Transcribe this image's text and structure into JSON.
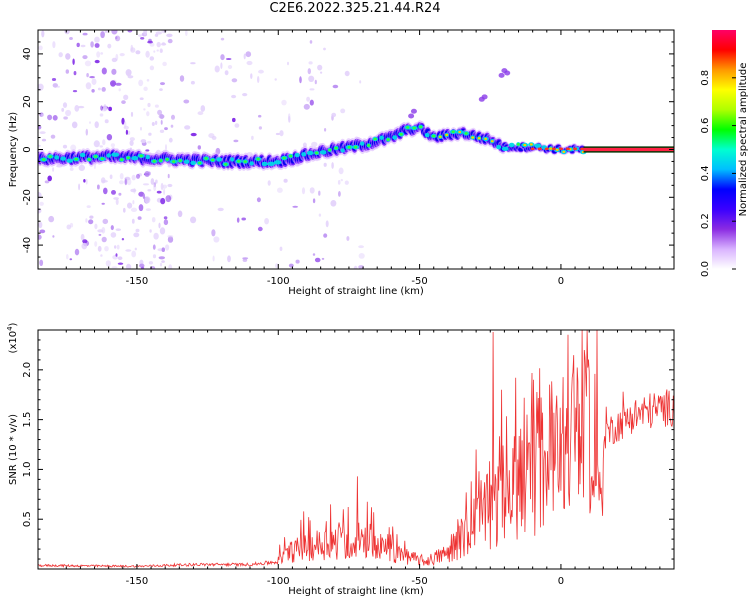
{
  "title": "C2E6.2022.325.21.44.R24",
  "colorbar": {
    "label": "Normalized spectral amplitude",
    "ticks": [
      "0.0",
      "0.2",
      "0.4",
      "0.6",
      "0.8"
    ],
    "range": [
      0,
      1
    ],
    "colors": [
      "#ffffff",
      "#d9b3ff",
      "#8a2be2",
      "#3a00ff",
      "#0000ff",
      "#00bfff",
      "#00ffd0",
      "#00ff00",
      "#b0ff00",
      "#ffff00",
      "#ff9900",
      "#ff0000",
      "#ff0066"
    ]
  },
  "chart_data": [
    {
      "type": "heatmap",
      "name": "spectrogram",
      "xlabel": "Height of straight line (km)",
      "ylabel": "Frequency (Hz)",
      "xlim": [
        -185,
        40
      ],
      "ylim": [
        -50,
        50
      ],
      "xticks": [
        -150,
        -100,
        -50,
        0
      ],
      "yticks": [
        -40,
        -20,
        0,
        20,
        40
      ],
      "ridge": {
        "x": [
          -185,
          -160,
          -140,
          -120,
          -100,
          -85,
          -70,
          -60,
          -55,
          -50,
          -45,
          -35,
          -25,
          -20,
          -10,
          0,
          10,
          20,
          40
        ],
        "freq": [
          -4,
          -3,
          -4,
          -5,
          -5,
          -1,
          2,
          5,
          8,
          9,
          5,
          7,
          4,
          1,
          1,
          0,
          0,
          0,
          0
        ]
      }
    },
    {
      "type": "line",
      "name": "snr",
      "xlabel": "Height of straight line (km)",
      "ylabel": "SNR (10 * v/v)",
      "ylabel_exponent": "(x10",
      "exponent_power": "4",
      "exponent_close": ")",
      "xlim": [
        -185,
        40
      ],
      "ylim": [
        0,
        24000
      ],
      "xticks": [
        -150,
        -100,
        -50,
        0
      ],
      "yticks": [
        5000,
        10000,
        15000,
        20000
      ],
      "ytick_labels": [
        "0.5",
        "1.0",
        "1.5",
        "2.0"
      ],
      "color": "#ee3333",
      "envelope": {
        "x": [
          -185,
          -150,
          -130,
          -110,
          -100,
          -95,
          -85,
          -75,
          -65,
          -55,
          -48,
          -40,
          -35,
          -28,
          -22,
          -15,
          -10,
          -5,
          0,
          5,
          10,
          15,
          20,
          25,
          30,
          35,
          40
        ],
        "y": [
          400,
          300,
          500,
          500,
          800,
          1800,
          2500,
          2800,
          2300,
          1300,
          700,
          1500,
          3000,
          5000,
          6000,
          8000,
          9000,
          10500,
          11500,
          12500,
          13500,
          14500,
          15500,
          16500,
          17000,
          17300,
          17500
        ]
      },
      "spikes": [
        {
          "x": -83,
          "y": 4800
        },
        {
          "x": -77,
          "y": 6000
        },
        {
          "x": -72,
          "y": 9300
        },
        {
          "x": -67,
          "y": 6200
        },
        {
          "x": -30,
          "y": 12000
        },
        {
          "x": -24,
          "y": 23800
        },
        {
          "x": -21,
          "y": 18000
        },
        {
          "x": -16,
          "y": 19200
        },
        {
          "x": -12,
          "y": 15500
        },
        {
          "x": 6,
          "y": 18800
        },
        {
          "x": 16,
          "y": 16300
        },
        {
          "x": 22,
          "y": 17800
        }
      ]
    }
  ]
}
